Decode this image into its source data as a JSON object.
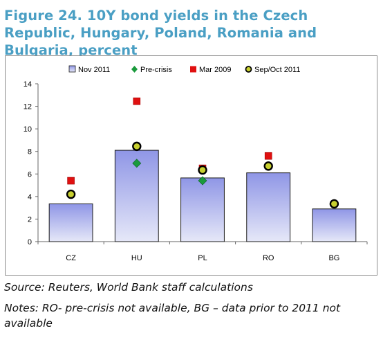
{
  "title": "Figure 24. 10Y bond yields in the Czech Republic, Hungary, Poland, Romania and Bulgaria, percent",
  "source": "Source: Reuters, World Bank staff calculations",
  "notes": "Notes: RO- pre-crisis not available, BG – data prior to 2011 not available",
  "colors": {
    "bar_top": "#8f96e6",
    "bar_bottom": "#e6e8f8",
    "pre_crisis": "#1a9a3c",
    "mar_2009": "#e01010",
    "sep_oct_2011": "#c8d030"
  },
  "chart_data": {
    "type": "bar",
    "categories": [
      "CZ",
      "HU",
      "PL",
      "RO",
      "BG"
    ],
    "ylim": [
      0,
      14
    ],
    "yticks": [
      0,
      2,
      4,
      6,
      8,
      10,
      12,
      14
    ],
    "grid": false,
    "legend_placement": "top",
    "series": [
      {
        "name": "Nov 2011",
        "kind": "bar",
        "values": [
          3.35,
          8.1,
          5.65,
          6.1,
          2.9
        ]
      },
      {
        "name": "Pre-crisis",
        "kind": "diamond",
        "values": [
          null,
          6.95,
          5.4,
          null,
          null
        ]
      },
      {
        "name": "Mar 2009",
        "kind": "square",
        "values": [
          5.4,
          12.45,
          6.5,
          7.6,
          null
        ]
      },
      {
        "name": "Sep/Oct 2011",
        "kind": "circle",
        "values": [
          4.2,
          8.45,
          6.35,
          6.7,
          3.35
        ]
      }
    ]
  }
}
